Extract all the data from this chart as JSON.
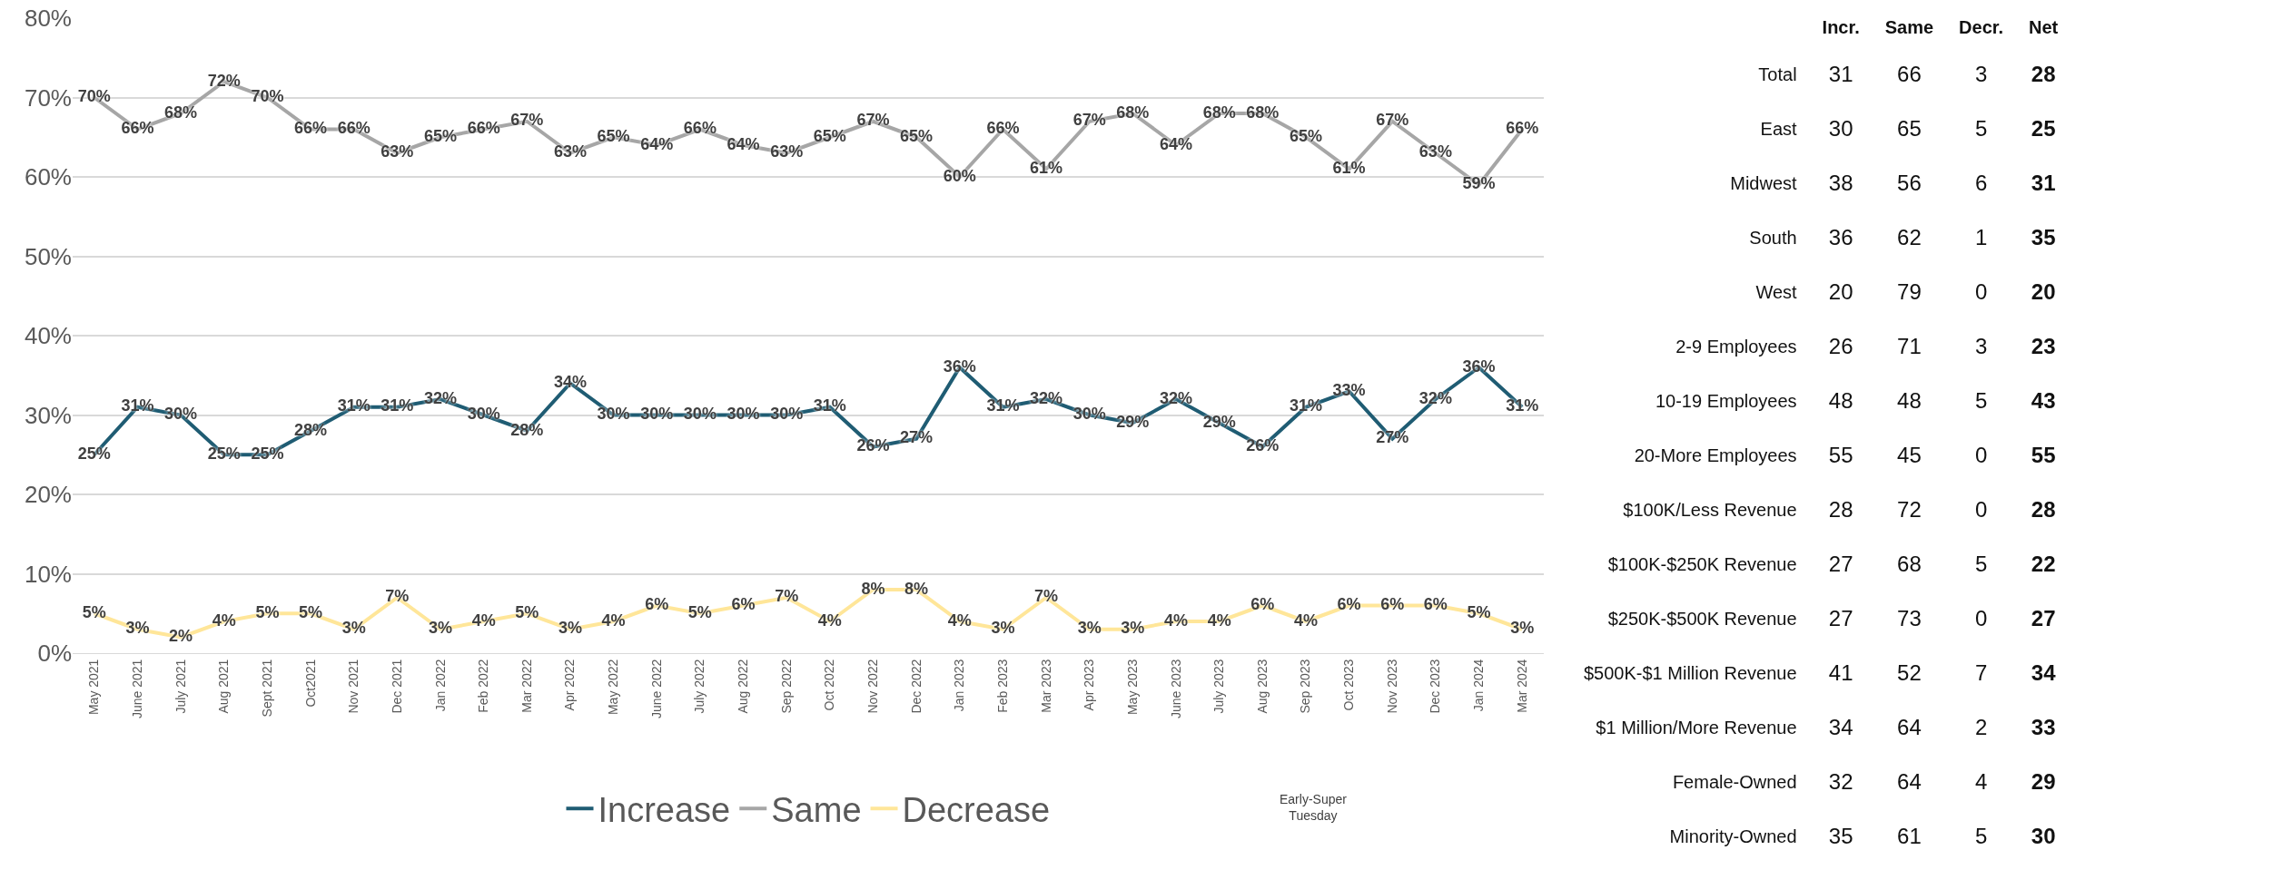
{
  "chart_data": [
    {
      "type": "line",
      "categories": [
        "May 2021",
        "June 2021",
        "July 2021",
        "Aug 2021",
        "Sept 2021",
        "Oct2021",
        "Nov 2021",
        "Dec 2021",
        "Jan 2022",
        "Feb 2022",
        "Mar 2022",
        "Apr 2022",
        "May 2022",
        "June 2022",
        "July 2022",
        "Aug 2022",
        "Sep 2022",
        "Oct 2022",
        "Nov 2022",
        "Dec 2022",
        "Jan 2023",
        "Feb 2023",
        "Mar 2023",
        "Apr 2023",
        "May 2023",
        "June 2023",
        "July 2023",
        "Aug 2023",
        "Sep 2023",
        "Oct 2023",
        "Nov 2023",
        "Dec 2023",
        "Jan 2024",
        "Mar 2024"
      ],
      "series": [
        {
          "name": "Increase",
          "color": "#1f5c73",
          "values": [
            25,
            31,
            30,
            25,
            25,
            28,
            31,
            31,
            32,
            30,
            28,
            34,
            30,
            30,
            30,
            30,
            30,
            31,
            26,
            27,
            36,
            31,
            32,
            30,
            29,
            32,
            29,
            26,
            31,
            33,
            27,
            32,
            36,
            31
          ],
          "value_labels": [
            "25%",
            "31%",
            "30%",
            "25%",
            "25%",
            "28%",
            "31%",
            "31%",
            "32%",
            "30%",
            "28%",
            "34%",
            "30%",
            "30%",
            "30%",
            "30%",
            "30%",
            "31%",
            "26%",
            "27%",
            "36%",
            "31%",
            "32%",
            "30%",
            "29%",
            "32%",
            "29%",
            "26%",
            "31%",
            "33%",
            "27%",
            "32%",
            "36%",
            "31%"
          ]
        },
        {
          "name": "Same",
          "color": "#a6a6a6",
          "values": [
            70,
            66,
            68,
            72,
            70,
            66,
            66,
            63,
            65,
            66,
            67,
            63,
            65,
            64,
            66,
            64,
            63,
            65,
            67,
            65,
            60,
            66,
            61,
            67,
            68,
            64,
            68,
            68,
            65,
            61,
            67,
            63,
            59,
            66
          ],
          "value_labels": [
            "70%",
            "66%",
            "68%",
            "72%",
            "70%",
            "66%",
            "66%",
            "63%",
            "65%",
            "66%",
            "67%",
            "63%",
            "65%",
            "64%",
            "66%",
            "64%",
            "63%",
            "65%",
            "67%",
            "65%",
            "60%",
            "66%",
            "61%",
            "67%",
            "68%",
            "64%",
            "68%",
            "68%",
            "65%",
            "61%",
            "67%",
            "63%",
            "59%",
            "66%"
          ]
        },
        {
          "name": "Decrease",
          "color": "#ffe699",
          "values": [
            5,
            3,
            2,
            4,
            5,
            5,
            3,
            7,
            3,
            4,
            5,
            3,
            4,
            6,
            5,
            6,
            7,
            4,
            8,
            8,
            4,
            3,
            7,
            3,
            3,
            4,
            4,
            6,
            4,
            6,
            6,
            6,
            5,
            3
          ],
          "value_labels": [
            "5%",
            "3%",
            "2%",
            "4%",
            "5%",
            "5%",
            "3%",
            "7%",
            "3%",
            "4%",
            "5%",
            "3%",
            "4%",
            "6%",
            "5%",
            "6%",
            "7%",
            "4%",
            "8%",
            "8%",
            "4%",
            "3%",
            "7%",
            "3%",
            "3%",
            "4%",
            "4%",
            "6%",
            "4%",
            "6%",
            "6%",
            "6%",
            "5%",
            "3%"
          ]
        }
      ],
      "ylim": [
        0,
        80
      ],
      "yticks": [
        {
          "value": 0,
          "label": "0%"
        },
        {
          "value": 10,
          "label": "10%"
        },
        {
          "value": 20,
          "label": "20%"
        },
        {
          "value": 30,
          "label": "30%"
        },
        {
          "value": 40,
          "label": "40%"
        },
        {
          "value": 50,
          "label": "50%"
        },
        {
          "value": 60,
          "label": "60%"
        },
        {
          "value": 70,
          "label": "70%"
        },
        {
          "value": 80,
          "label": "80%"
        }
      ],
      "grid": "y",
      "legend": "bottom",
      "marker": "none",
      "line_style": "solid",
      "annotations": [
        "Early-Super Tuesday"
      ]
    },
    {
      "type": "other",
      "categories": [
        "Total",
        "East",
        "Midwest",
        "South",
        "West",
        "2-9 Employees",
        "10-19 Employees",
        "20-More Employees",
        "$100K/Less Revenue",
        "$100K-$250K Revenue",
        "$250K-$500K Revenue",
        "$500K-$1 Million Revenue",
        "$1 Million/More Revenue",
        "Female-Owned",
        "Minority-Owned"
      ],
      "series": [
        {
          "name": "Incr.",
          "values": [
            31,
            30,
            38,
            36,
            20,
            26,
            48,
            55,
            28,
            27,
            27,
            41,
            34,
            32,
            35
          ]
        },
        {
          "name": "Same",
          "values": [
            66,
            65,
            56,
            62,
            79,
            71,
            48,
            45,
            72,
            68,
            73,
            52,
            64,
            64,
            61
          ]
        },
        {
          "name": "Decr.",
          "values": [
            3,
            5,
            6,
            1,
            0,
            3,
            5,
            0,
            0,
            5,
            0,
            7,
            2,
            4,
            5
          ]
        },
        {
          "name": "Net",
          "values": [
            28,
            25,
            31,
            35,
            20,
            23,
            43,
            55,
            28,
            22,
            27,
            34,
            33,
            29,
            30
          ]
        }
      ],
      "data_labels": true
    }
  ]
}
